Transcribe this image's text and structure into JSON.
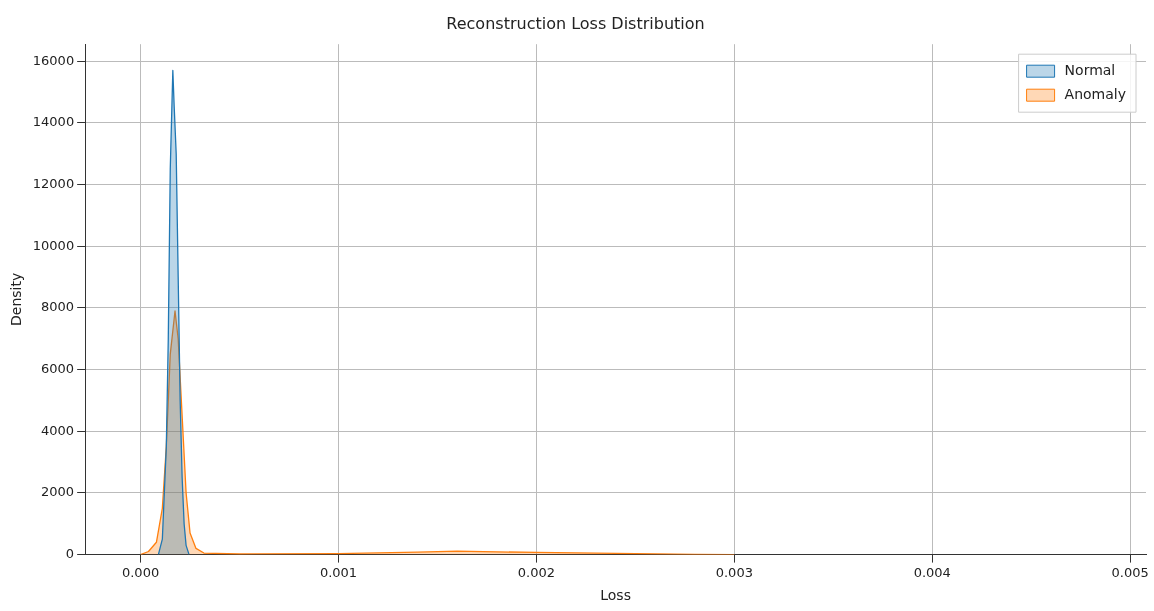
{
  "chart_data": {
    "type": "area",
    "title": "Reconstruction Loss Distribution",
    "xlabel": "Loss",
    "ylabel": "Density",
    "xlim": [
      -0.00028,
      0.00508
    ],
    "xticks": [
      {
        "value": 0,
        "label": "0.000"
      },
      0.001,
      0.002,
      0.003,
      0.004,
      0.005
    ],
    "ylim": [
      0,
      16550
    ],
    "yticks": [
      0,
      2000,
      4000,
      6000,
      8000,
      10000,
      12000,
      14000,
      16000
    ],
    "grid": true,
    "legend": "top right",
    "marker": "none",
    "line_style": "solid",
    "series": [
      {
        "name": "Normal",
        "color": "#1f77b4",
        "x": [
          9e-05,
          0.00011,
          0.00013,
          0.00014,
          0.00015,
          0.000163,
          0.00017,
          0.00018,
          0.00019,
          0.0002,
          0.00021,
          0.00022,
          0.00023,
          0.000245
        ],
        "values": [
          0,
          500,
          3500,
          7000,
          12500,
          15700,
          14500,
          13000,
          9000,
          5000,
          2500,
          1000,
          300,
          0
        ]
      },
      {
        "name": "Anomaly",
        "color": "#ff7f0e",
        "x": [
          0,
          4e-05,
          8e-05,
          0.00011,
          0.00013,
          0.00015,
          0.000174,
          0.00019,
          0.00021,
          0.00023,
          0.00025,
          0.00028,
          0.00032,
          0.0005,
          0.001,
          0.0014,
          0.0016,
          0.0018,
          0.002,
          0.0024,
          0.0028,
          0.003
        ],
        "values": [
          0,
          100,
          400,
          1500,
          3500,
          6500,
          7900,
          7000,
          4500,
          2000,
          700,
          200,
          50,
          20,
          30,
          80,
          110,
          90,
          70,
          40,
          10,
          0
        ]
      }
    ]
  }
}
